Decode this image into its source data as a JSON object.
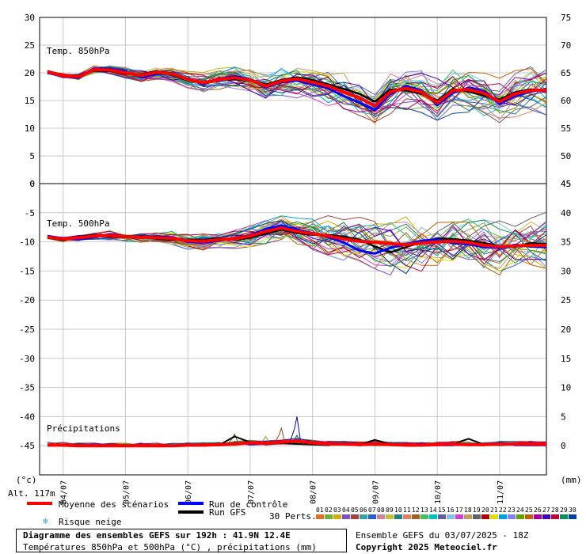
{
  "chart_data": [
    {
      "type": "line",
      "panel": "top",
      "title": "Temp. 850hPa",
      "ylim_left": [
        0,
        30
      ],
      "ylim_right": [
        45,
        75
      ],
      "yticks_left": [
        "0",
        "5",
        "10",
        "15",
        "20",
        "25",
        "30"
      ],
      "yticks_right": [
        "45",
        "50",
        "55",
        "60",
        "65",
        "70",
        "75"
      ],
      "x_hours": [
        0,
        6,
        12,
        18,
        24,
        30,
        36,
        42,
        48,
        54,
        60,
        66,
        72,
        78,
        84,
        90,
        96,
        102,
        108,
        114,
        120,
        126,
        132,
        138,
        144,
        150,
        156,
        162,
        168,
        174,
        180,
        186,
        192
      ],
      "series": [
        {
          "name": "Moyenne des scénarios",
          "color": "#ff0000",
          "values": [
            20.2,
            19.5,
            19.3,
            20.6,
            20.5,
            20.0,
            19.5,
            20.1,
            19.8,
            18.8,
            18.2,
            18.8,
            19.1,
            18.7,
            17.6,
            18.5,
            18.9,
            18.3,
            17.6,
            16.5,
            15.5,
            14.0,
            16.6,
            17.2,
            16.5,
            14.6,
            16.8,
            17.0,
            16.3,
            14.8,
            16.2,
            16.8,
            16.9
          ]
        },
        {
          "name": "Run de contrôle",
          "color": "#0000ff",
          "values": [
            20.0,
            19.4,
            19.1,
            20.8,
            20.7,
            20.2,
            19.2,
            19.8,
            19.9,
            18.9,
            18.0,
            18.9,
            19.4,
            18.8,
            17.4,
            18.3,
            18.6,
            17.9,
            17.2,
            15.8,
            14.6,
            13.3,
            16.2,
            17.6,
            16.8,
            14.2,
            16.4,
            17.3,
            16.7,
            14.4,
            15.8,
            16.6,
            17.1
          ]
        },
        {
          "name": "Run GFS",
          "color": "#000000",
          "values": [
            20.1,
            19.6,
            19.5,
            20.4,
            20.3,
            19.8,
            19.7,
            20.3,
            19.6,
            18.6,
            18.3,
            18.7,
            18.8,
            18.6,
            17.9,
            18.7,
            19.2,
            18.7,
            17.9,
            17.1,
            16.2,
            14.8,
            17.0,
            16.8,
            16.2,
            15.0,
            17.1,
            16.6,
            15.9,
            15.2,
            16.5,
            17.0,
            16.7
          ]
        }
      ],
      "spread": [
        0.3,
        0.4,
        0.5,
        0.6,
        0.7,
        0.8,
        0.9,
        1.0,
        1.1,
        1.2,
        1.3,
        1.4,
        1.5,
        1.6,
        1.8,
        2.0,
        2.2,
        2.3,
        2.4,
        2.5,
        2.6,
        2.6,
        2.7,
        2.7,
        2.8,
        2.8,
        2.8,
        2.9,
        2.9,
        2.9,
        3.0,
        3.0,
        3.0
      ]
    },
    {
      "type": "line",
      "panel": "bottom",
      "title": "Temp. 500hPa",
      "ylim_left": [
        -50,
        0
      ],
      "ylim_right": [
        -5,
        45
      ],
      "yticks_left": [
        "-45",
        "-40",
        "-35",
        "-30",
        "-25",
        "-20",
        "-15",
        "-10",
        "-5",
        "0"
      ],
      "yticks_right": [
        "0",
        "5",
        "10",
        "15",
        "20",
        "25",
        "30",
        "35",
        "40",
        "45"
      ],
      "x_hours": [
        0,
        6,
        12,
        18,
        24,
        30,
        36,
        42,
        48,
        54,
        60,
        66,
        72,
        78,
        84,
        90,
        96,
        102,
        108,
        114,
        120,
        126,
        132,
        138,
        144,
        150,
        156,
        162,
        168,
        174,
        180,
        186,
        192
      ],
      "series": [
        {
          "name": "Moyenne des scénarios",
          "color": "#ff0000",
          "values": [
            -9.2,
            -9.5,
            -9.3,
            -9.0,
            -8.9,
            -9.1,
            -9.2,
            -9.3,
            -9.4,
            -9.8,
            -9.9,
            -9.6,
            -9.5,
            -9.0,
            -8.2,
            -7.6,
            -8.2,
            -8.6,
            -9.0,
            -9.5,
            -9.9,
            -10.1,
            -10.3,
            -10.5,
            -10.2,
            -10.0,
            -9.9,
            -10.1,
            -10.6,
            -10.8,
            -10.7,
            -10.6,
            -10.6
          ]
        },
        {
          "name": "Run de contrôle",
          "color": "#0000ff",
          "values": [
            -9.0,
            -9.4,
            -9.6,
            -9.2,
            -8.7,
            -9.0,
            -9.3,
            -9.1,
            -9.2,
            -10.0,
            -10.1,
            -9.8,
            -9.4,
            -8.8,
            -7.8,
            -7.2,
            -7.9,
            -8.5,
            -9.2,
            -10.1,
            -11.5,
            -12.0,
            -11.0,
            -10.4,
            -9.8,
            -9.6,
            -10.2,
            -10.4,
            -10.9,
            -11.0,
            -10.5,
            -10.8,
            -10.9
          ]
        },
        {
          "name": "Run GFS",
          "color": "#000000",
          "values": [
            -9.3,
            -9.7,
            -9.1,
            -8.8,
            -9.1,
            -9.2,
            -9.0,
            -9.5,
            -9.6,
            -9.6,
            -9.7,
            -9.4,
            -9.7,
            -9.3,
            -8.6,
            -7.9,
            -8.5,
            -8.8,
            -8.8,
            -9.1,
            -9.6,
            -10.8,
            -11.8,
            -10.9,
            -10.0,
            -9.4,
            -9.5,
            -9.8,
            -10.2,
            -10.7,
            -10.9,
            -10.2,
            -10.4
          ]
        }
      ],
      "spread": [
        0.3,
        0.4,
        0.5,
        0.5,
        0.6,
        0.6,
        0.7,
        0.8,
        0.9,
        1.0,
        1.1,
        1.2,
        1.3,
        1.5,
        1.7,
        1.9,
        2.1,
        2.3,
        2.5,
        2.7,
        2.9,
        3.1,
        3.2,
        3.3,
        3.3,
        3.3,
        3.4,
        3.4,
        3.4,
        3.4,
        3.5,
        3.5,
        3.5
      ]
    },
    {
      "type": "line",
      "panel": "bottom",
      "title": "Précipitations",
      "ylim_right": [
        -5,
        45
      ],
      "x_hours": [
        0,
        6,
        12,
        18,
        24,
        30,
        36,
        42,
        48,
        54,
        60,
        66,
        72,
        78,
        84,
        90,
        96,
        102,
        108,
        114,
        120,
        126,
        132,
        138,
        144,
        150,
        156,
        162,
        168,
        174,
        180,
        186,
        192
      ],
      "series": [
        {
          "name": "Moyenne des scénarios",
          "color": "#ff0000",
          "values": [
            0.1,
            0.1,
            0,
            0,
            0,
            0,
            0,
            0,
            0,
            0.1,
            0.1,
            0.2,
            0.3,
            0.5,
            0.4,
            0.6,
            0.8,
            0.5,
            0.3,
            0.3,
            0.2,
            0.3,
            0.2,
            0.1,
            0.1,
            0.2,
            0.3,
            0.2,
            0.2,
            0.3,
            0.3,
            0.3,
            0.2
          ]
        },
        {
          "name": "Run de contrôle",
          "color": "#0000ff",
          "values": [
            0,
            0,
            0,
            0,
            0,
            0,
            0,
            0,
            0,
            0,
            0,
            0.1,
            0.5,
            0.2,
            0.3,
            0.5,
            1.0,
            0.4,
            0.2,
            0.3,
            0.1,
            0.2,
            0.1,
            0,
            0,
            0.1,
            0.2,
            0.1,
            0.3,
            0.2,
            0.3,
            0.2,
            0.1
          ]
        },
        {
          "name": "Run GFS",
          "color": "#000000",
          "values": [
            0,
            0,
            0,
            0,
            0,
            0,
            0,
            0,
            0,
            0,
            0,
            0.1,
            1.6,
            0.6,
            0.3,
            0.4,
            0.3,
            0.2,
            0.1,
            0.4,
            0.2,
            1.0,
            0.3,
            0.1,
            0,
            0.2,
            0.3,
            1.2,
            0.2,
            0.1,
            0.2,
            0.3,
            0.1
          ]
        }
      ],
      "members_peaks": [
        {
          "hour": 96,
          "value": 5.0,
          "color": "#0000aa"
        },
        {
          "hour": 90,
          "value": 3.0,
          "color": "#b04020"
        },
        {
          "hour": 72,
          "value": 2.0,
          "color": "#606020"
        },
        {
          "hour": 96,
          "value": 1.8,
          "color": "#006060"
        },
        {
          "hour": 84,
          "value": 1.6,
          "color": "#a0a000"
        }
      ]
    }
  ],
  "x_dates": [
    "04/07",
    "05/07",
    "06/07",
    "07/07",
    "08/07",
    "09/07",
    "10/07",
    "11/07"
  ],
  "unit_left": "(°c)",
  "unit_right": "(mm)",
  "altitude": "Alt. 117m",
  "legend": {
    "mean": "Moyenne des scénarios",
    "control": "Run de contrôle",
    "gfs": "Run GFS",
    "snow": "Risque neige",
    "perts_label": "30 Perts.",
    "perts": [
      "01",
      "02",
      "03",
      "04",
      "05",
      "06",
      "07",
      "08",
      "09",
      "10",
      "11",
      "12",
      "13",
      "14",
      "15",
      "16",
      "17",
      "18",
      "19",
      "20",
      "21",
      "22",
      "23",
      "24",
      "25",
      "26",
      "27",
      "28",
      "29",
      "30"
    ],
    "perts_colors": [
      "#e07020",
      "#70b040",
      "#d0b000",
      "#8050c0",
      "#a04040",
      "#40a0a0",
      "#2060d0",
      "#d080a0",
      "#c0c040",
      "#208080",
      "#e08060",
      "#a06020",
      "#40c060",
      "#00c0c0",
      "#6060a0",
      "#80c0e0",
      "#d040d0",
      "#c0a060",
      "#606060",
      "#b00000",
      "#e0e000",
      "#00a0e0",
      "#8080ff",
      "#60a000",
      "#c06000",
      "#a000a0",
      "#4000c0",
      "#c00040",
      "#009060",
      "#0040a0"
    ]
  },
  "footer": {
    "title": "Diagramme des ensembles GEFS sur 192h : 41.9N 12.4E",
    "subtitle": "Températures 850hPa et 500hPa (°C) , précipitations (mm)",
    "run": "Ensemble GEFS du 03/07/2025 - 18Z",
    "copyright": "Copyright 2025 Meteociel.fr"
  }
}
